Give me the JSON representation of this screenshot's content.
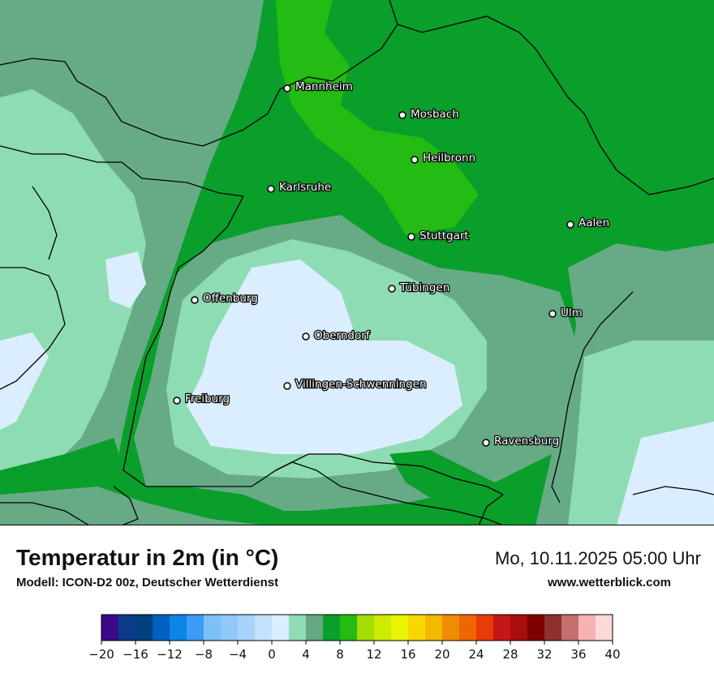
{
  "map": {
    "cities": [
      {
        "name": "Mannheim"
      },
      {
        "name": "Mosbach"
      },
      {
        "name": "Heilbronn"
      },
      {
        "name": "Karlsruhe"
      },
      {
        "name": "Aalen"
      },
      {
        "name": "Stuttgart"
      },
      {
        "name": "Tübingen"
      },
      {
        "name": "Offenburg"
      },
      {
        "name": "Ulm"
      },
      {
        "name": "Oberndorf"
      },
      {
        "name": "Villingen-Schwenningen"
      },
      {
        "name": "Freiburg"
      },
      {
        "name": "Ravensburg"
      }
    ]
  },
  "footer": {
    "title": "Temperatur in 2m (in °C)",
    "subtitle": "Modell: ICON-D2 00z, Deutscher Wetterdienst",
    "datetime": "Mo, 10.11.2025 05:00 Uhr",
    "website": "www.wetterblick.com"
  },
  "legend": {
    "colors": [
      "#3a0a8a",
      "#0b3b88",
      "#003f80",
      "#0060c0",
      "#0a84e6",
      "#3a9cf5",
      "#7cbff9",
      "#8fc8fb",
      "#a6d3fc",
      "#c4e2fd",
      "#dbeeff",
      "#8fdcb4",
      "#65a882",
      "#09a02b",
      "#24bb12",
      "#a4dd00",
      "#cceb00",
      "#e9f500",
      "#f6d800",
      "#f4b800",
      "#f08c00",
      "#ee6600",
      "#e83a0a",
      "#c41818",
      "#a80e0e",
      "#7e0000",
      "#8c3030",
      "#c47070",
      "#f6b2b2",
      "#ffd9d9"
    ],
    "ticks": [
      "−20",
      "−16",
      "−12",
      "−8",
      "−4",
      "0",
      "4",
      "8",
      "12",
      "16",
      "20",
      "24",
      "28",
      "32",
      "36",
      "40"
    ]
  }
}
